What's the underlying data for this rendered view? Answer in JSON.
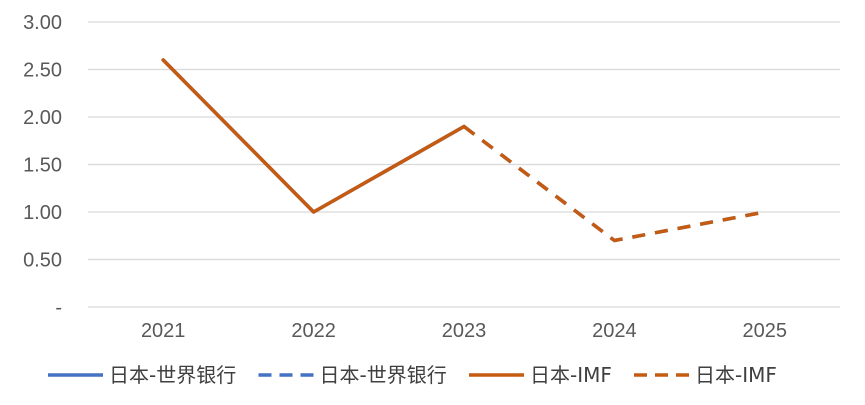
{
  "chart_data": {
    "type": "line",
    "title": "",
    "xlabel": "",
    "ylabel": "",
    "categories": [
      "2021",
      "2022",
      "2023",
      "2024",
      "2025"
    ],
    "ylim": [
      0,
      3
    ],
    "yticks": [
      0,
      0.5,
      1.0,
      1.5,
      2.0,
      2.5,
      3.0
    ],
    "ytick_labels": [
      "-",
      "0.50",
      "1.00",
      "1.50",
      "2.00",
      "2.50",
      "3.00"
    ],
    "grid": true,
    "legend_position": "bottom",
    "series": [
      {
        "name": "日本-世界银行",
        "color": "#4472C4",
        "dash": false,
        "values": [
          2.6,
          1.0,
          1.9,
          null,
          null
        ]
      },
      {
        "name": "日本-世界银行",
        "color": "#4472C4",
        "dash": true,
        "values": [
          null,
          null,
          1.9,
          0.7,
          1.0
        ]
      },
      {
        "name": "日本-IMF",
        "color": "#C55A11",
        "dash": false,
        "values": [
          2.6,
          1.0,
          1.9,
          null,
          null
        ]
      },
      {
        "name": "日本-IMF",
        "color": "#C55A11",
        "dash": true,
        "values": [
          null,
          null,
          1.9,
          0.7,
          1.0
        ]
      }
    ]
  }
}
